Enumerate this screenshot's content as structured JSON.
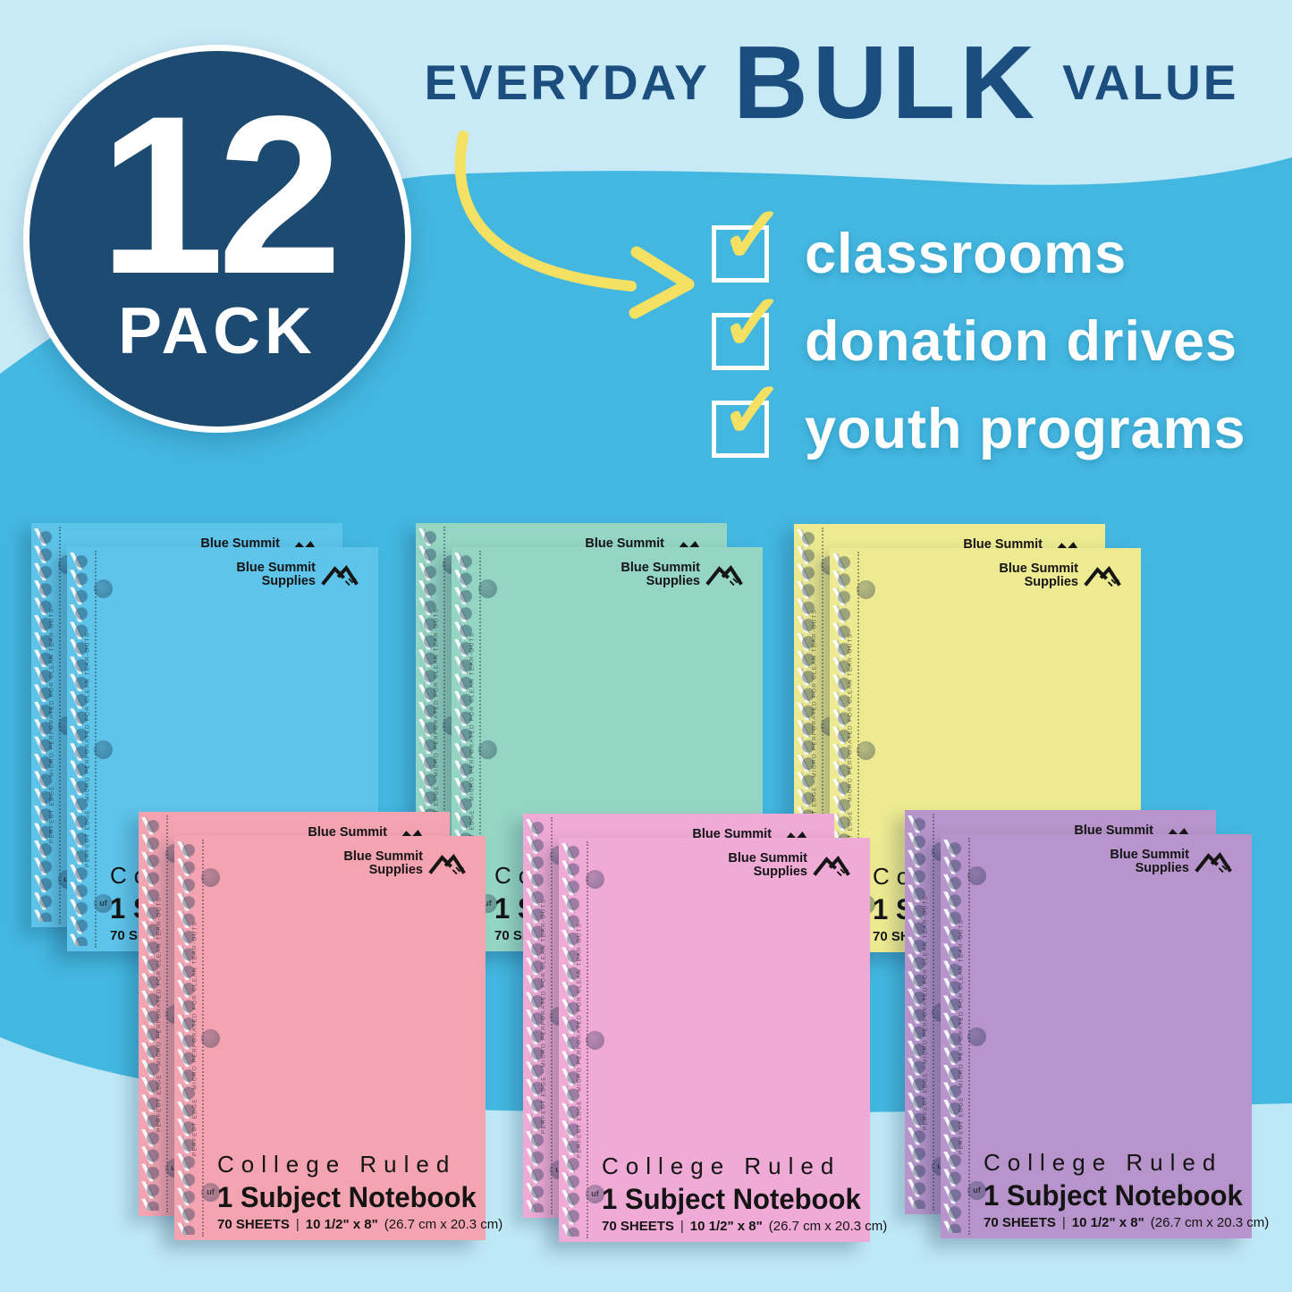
{
  "badge": {
    "count": "12",
    "label": "PACK"
  },
  "headline": {
    "pre": "EVERYDAY",
    "emph": "BULK",
    "post": "VALUE"
  },
  "checklist": {
    "check_glyph": "✓",
    "items": [
      {
        "label": "classrooms"
      },
      {
        "label": "donation drives"
      },
      {
        "label": "youth programs"
      }
    ]
  },
  "notebook": {
    "brand_line1": "Blue Summit",
    "brand_line2": "Supplies",
    "ruling": "College Ruled",
    "product": "1 Subject Notebook",
    "sheets": "70 SHEETS",
    "divider": "|",
    "size_imperial": "10 1/2\" x 8\"",
    "size_metric": "(26.7 cm x 20.3 cm)",
    "edge_note": "PERFECT EDGE - MICRO PERFORATED FOR CLEAN TEAR-OUTS",
    "punch_mark": "uf"
  },
  "stacks": [
    {
      "name": "blue",
      "color": "#5ec4e9"
    },
    {
      "name": "mint",
      "color": "#95d5c3"
    },
    {
      "name": "yellow",
      "color": "#edea91"
    },
    {
      "name": "pink",
      "color": "#f4a4b1"
    },
    {
      "name": "orchid",
      "color": "#efaad6"
    },
    {
      "name": "purple",
      "color": "#b794cb"
    }
  ],
  "colors": {
    "background": "#43b7e0",
    "wave_top": "#c8eaf6",
    "wave_bottom": "#bfe8f6",
    "badge": "#1d4a70",
    "headline": "#1b4d7e",
    "accent_yellow": "#f4e164",
    "check_text": "#ffffff"
  }
}
